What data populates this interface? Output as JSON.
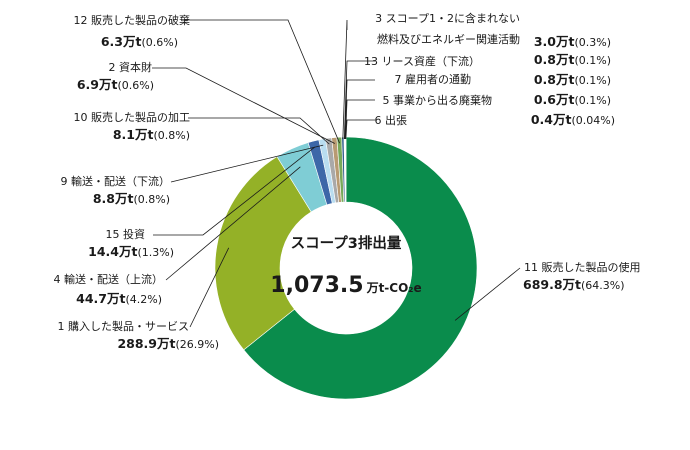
{
  "chart_data": {
    "type": "donut",
    "center": {
      "title": "スコープ3排出量",
      "value": "1,073.5",
      "unit": "万t-CO₂e"
    },
    "total": 1073.5,
    "slices": [
      {
        "key": "s11",
        "name": "11 販売した製品の使用",
        "value": 689.8,
        "value_label": "689.8万t",
        "pct_label": "(64.3%)",
        "color": "#0a8c4c"
      },
      {
        "key": "s1",
        "name": "1 購入した製品・サービス",
        "value": 288.9,
        "value_label": "288.9万t",
        "pct_label": "(26.9%)",
        "color": "#94b127"
      },
      {
        "key": "s4",
        "name": "4 輸送・配送（上流）",
        "value": 44.7,
        "value_label": "44.7万t",
        "pct_label": "(4.2%)",
        "color": "#7fcdd5"
      },
      {
        "key": "s15",
        "name": "15 投資",
        "value": 14.4,
        "value_label": "14.4万t",
        "pct_label": "(1.3%)",
        "color": "#3d67a8"
      },
      {
        "key": "s9",
        "name": "9 輸送・配送（下流）",
        "value": 8.8,
        "value_label": "8.8万t",
        "pct_label": "(0.8%)",
        "color": "#b9ddf0"
      },
      {
        "key": "s10",
        "name": "10 販売した製品の加工",
        "value": 8.1,
        "value_label": "8.1万t",
        "pct_label": "(0.8%)",
        "color": "#a9a9a9"
      },
      {
        "key": "s2",
        "name": "2 資本財",
        "value": 6.9,
        "value_label": "6.9万t",
        "pct_label": "(0.6%)",
        "color": "#b89a72"
      },
      {
        "key": "s12",
        "name": "12 販売した製品の破棄",
        "value": 6.3,
        "value_label": "6.3万t",
        "pct_label": "(0.6%)",
        "color": "#77a95a"
      },
      {
        "key": "s3",
        "name": "3 スコープ1・2に含まれない\n燃料及びエネルギー関連活動",
        "value": 3.0,
        "value_label": "3.0万t",
        "pct_label": "(0.3%)",
        "color": "#2f5d8a"
      },
      {
        "key": "s13",
        "name": "13 リース資産（下流）",
        "value": 0.8,
        "value_label": "0.8万t",
        "pct_label": "(0.1%)",
        "color": "#c4c4c4"
      },
      {
        "key": "s7",
        "name": "7 雇用者の通勤",
        "value": 0.8,
        "value_label": "0.8万t",
        "pct_label": "(0.1%)",
        "color": "#8ec9e8"
      },
      {
        "key": "s5",
        "name": "5 事業から出る廃棄物",
        "value": 0.6,
        "value_label": "0.6万t",
        "pct_label": "(0.1%)",
        "color": "#5e8c3a"
      },
      {
        "key": "s6",
        "name": "6 出張",
        "value": 0.4,
        "value_label": "0.4万t",
        "pct_label": "(0.04%)",
        "color": "#e2c9a0"
      }
    ]
  }
}
